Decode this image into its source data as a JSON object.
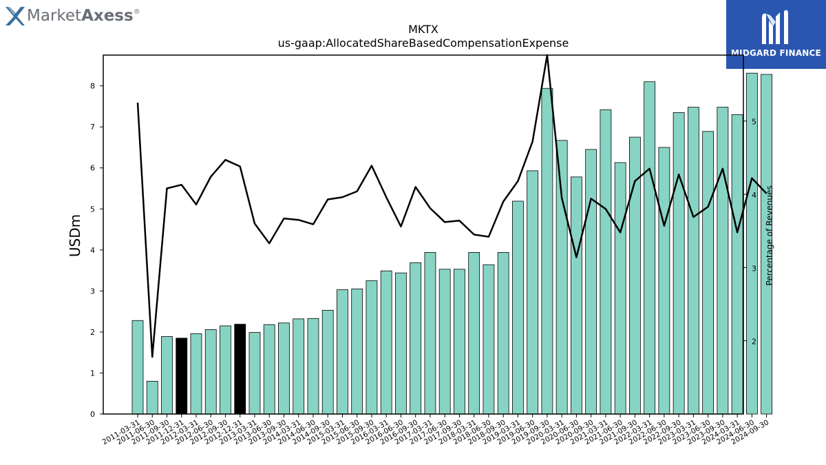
{
  "branding": {
    "logo_left": {
      "part1": "Market",
      "part2": "Axess",
      "mark": "®",
      "icon": "x-mark-icon"
    },
    "logo_right": {
      "label": "MIDGARD FINANCE",
      "icon": "midgard-m-icon",
      "bg_color": "#2a56b0"
    }
  },
  "chart_data": {
    "type": "bar",
    "title": "MKTX",
    "subtitle": "us-gaap:AllocatedShareBasedCompensationExpense",
    "ylabel": "USDm",
    "y2label": "Percentage of Revenues",
    "ylim": [
      0,
      8.75
    ],
    "y2lim": [
      1.0,
      5.9
    ],
    "yticks": [
      0,
      1,
      2,
      3,
      4,
      5,
      6,
      7,
      8
    ],
    "y2ticks": [
      2,
      3,
      4,
      5
    ],
    "grid": false,
    "bar_color": "#88d4c4",
    "highlight_color": "#000000",
    "line_color": "#000000",
    "categories": [
      "2011-03-31",
      "2011-06-30",
      "2011-09-30",
      "2011-12-31",
      "2012-03-31",
      "2012-06-30",
      "2012-09-30",
      "2012-12-31",
      "2013-03-31",
      "2013-06-30",
      "2013-09-30",
      "2014-03-31",
      "2014-06-30",
      "2014-09-30",
      "2015-03-31",
      "2015-06-30",
      "2015-09-30",
      "2016-03-31",
      "2016-06-30",
      "2016-09-30",
      "2017-03-31",
      "2017-06-30",
      "2017-09-30",
      "2018-03-31",
      "2018-06-30",
      "2018-09-30",
      "2019-03-31",
      "2019-06-30",
      "2019-09-30",
      "2020-03-31",
      "2020-06-30",
      "2020-09-30",
      "2021-03-31",
      "2021-06-30",
      "2021-09-30",
      "2022-03-31",
      "2022-06-30",
      "2022-09-30",
      "2023-03-31",
      "2023-06-30",
      "2023-09-30",
      "2024-03-31",
      "2024-06-30",
      "2024-09-30"
    ],
    "series": [
      {
        "type": "bar",
        "axis": "left",
        "values": [
          2.28,
          0.8,
          1.89,
          1.85,
          1.96,
          2.06,
          2.15,
          2.19,
          1.99,
          2.18,
          2.22,
          2.32,
          2.33,
          2.53,
          3.03,
          3.05,
          3.25,
          3.49,
          3.44,
          3.69,
          3.94,
          3.53,
          3.53,
          3.94,
          3.64,
          3.94,
          5.19,
          5.93,
          7.94,
          6.67,
          5.78,
          6.45,
          7.42,
          6.13,
          6.75,
          8.1,
          6.5,
          7.35,
          7.48,
          6.89,
          7.48,
          7.3,
          8.31,
          8.28
        ],
        "highlight_indices": [
          3,
          7
        ]
      },
      {
        "type": "line",
        "axis": "right",
        "values": [
          5.25,
          1.78,
          4.08,
          4.13,
          3.86,
          4.24,
          4.47,
          4.38,
          3.6,
          3.33,
          3.67,
          3.65,
          3.59,
          3.93,
          3.96,
          4.04,
          4.39,
          3.96,
          3.56,
          4.1,
          3.81,
          3.62,
          3.64,
          3.45,
          3.42,
          3.9,
          4.18,
          4.72,
          5.9,
          3.95,
          3.14,
          3.94,
          3.8,
          3.48,
          4.18,
          4.35,
          3.57,
          4.27,
          3.69,
          3.83,
          4.35,
          3.48,
          4.22,
          4.01
        ]
      }
    ]
  }
}
